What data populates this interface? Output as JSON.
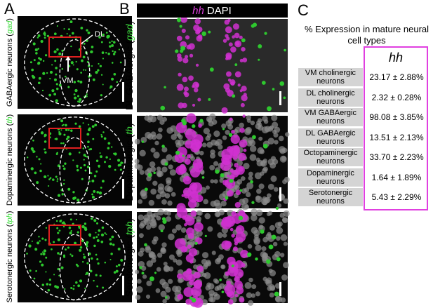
{
  "panel_a": {
    "label": "A",
    "rows": [
      {
        "prefix": "GABAergic neurons (",
        "gene": "gad",
        "suffix": ")"
      },
      {
        "prefix": "Dopaminergic neurons (",
        "gene": "th",
        "suffix": ")"
      },
      {
        "prefix": "Serotonergic neurons (",
        "gene": "tph",
        "suffix": ")"
      }
    ],
    "annotations": [
      "DL",
      "VM"
    ]
  },
  "panel_b": {
    "label": "B",
    "header": {
      "gene": "hh",
      "stain": "DAPI"
    },
    "rows": [
      {
        "prefix": "DL GABAergic (",
        "gene": "gad",
        "suffix": ")"
      },
      {
        "prefix": "Dopaminergic (",
        "gene": "th",
        "suffix": ")"
      },
      {
        "prefix": "Serotonergic (",
        "gene": "tph",
        "suffix": ")"
      }
    ]
  },
  "panel_c": {
    "label": "C",
    "title": "% Expression in mature neural cell types",
    "table": {
      "header": "hh",
      "rows": [
        [
          "VM cholinergic neurons",
          "23.17 ± 2.88%"
        ],
        [
          "DL cholinergic neurons",
          "2.32 ± 0.28%"
        ],
        [
          "VM GABAergic neurons",
          "98.08 ± 3.85%"
        ],
        [
          "DL GABAergic neurons",
          "13.51 ± 2.13%"
        ],
        [
          "Octopaminergic neurons",
          "33.70 ± 2.23%"
        ],
        [
          "Dopaminergic neurons",
          "1.64 ± 1.89%"
        ],
        [
          "Serotonergic neurons",
          "5.43 ± 2.29%"
        ]
      ]
    }
  }
}
